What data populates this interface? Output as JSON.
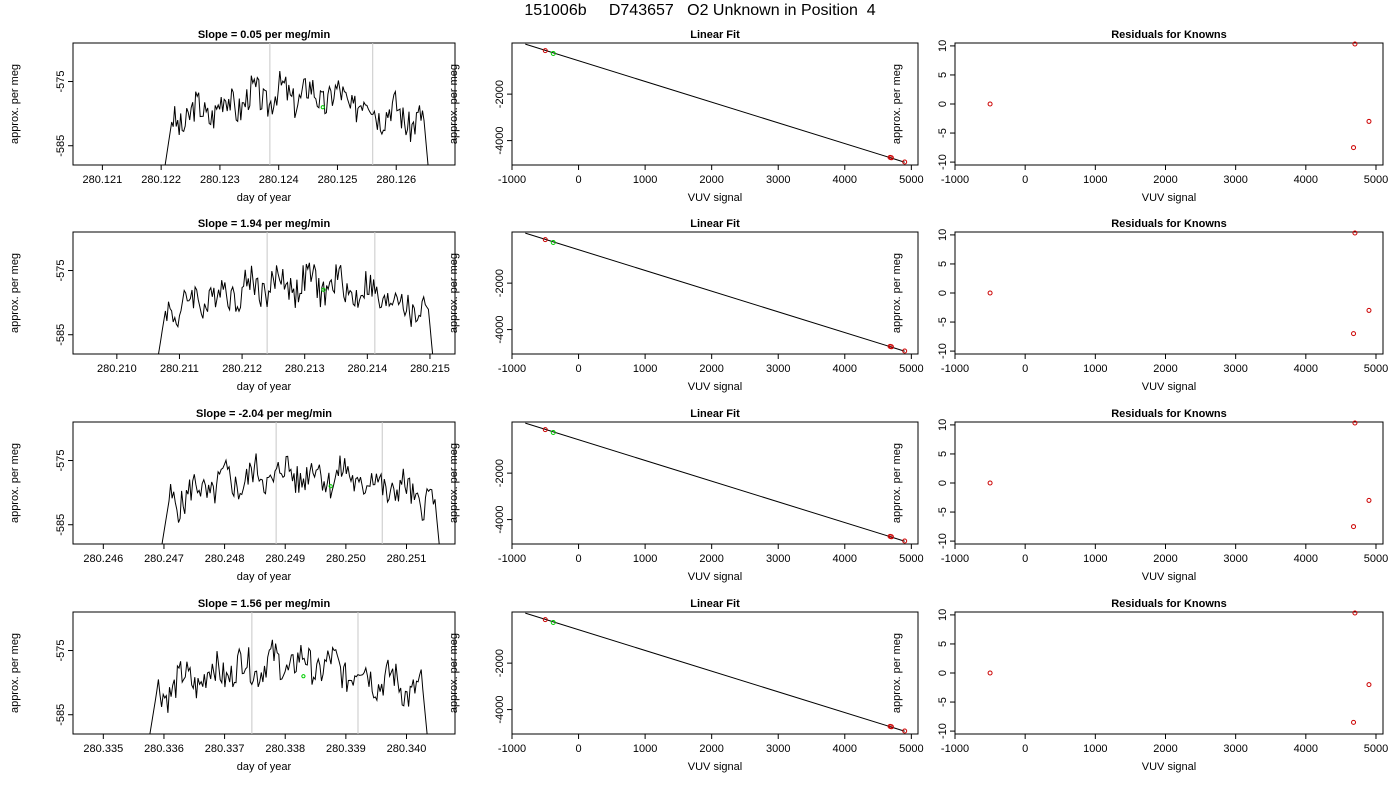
{
  "page_title": "151006b     D743657   O2 Unknown in Position  4",
  "colors": {
    "trace": "#000000",
    "vline": "#c8c8c8",
    "known": "#cc0000",
    "unknown": "#00cc00",
    "axis": "#000000"
  },
  "chart_data": [
    {
      "type": "line",
      "row": 0,
      "title": "Slope =  0.05  per meg/min",
      "xlabel": "day of year",
      "ylabel": "approx. per meg",
      "xlim": [
        280.1205,
        280.127
      ],
      "ylim": [
        -588,
        -569
      ],
      "xticks": [
        "280.121",
        "280.122",
        "280.123",
        "280.124",
        "280.125",
        "280.126"
      ],
      "yticks": [
        "-575",
        "-585"
      ],
      "trace_x": [
        280.122,
        280.1266
      ],
      "vlines": [
        280.12385,
        280.1256
      ],
      "marker": [
        280.12475,
        -579
      ]
    },
    {
      "type": "scatter",
      "row": 0,
      "title": "Linear Fit",
      "xlabel": "VUV signal",
      "ylabel": "approx. per meg",
      "xlim": [
        -1000,
        5100
      ],
      "ylim": [
        -5050,
        200
      ],
      "xticks": [
        "-1000",
        "0",
        "1000",
        "2000",
        "3000",
        "4000",
        "5000"
      ],
      "yticks": [
        "-2000",
        "-4000"
      ],
      "fit_line": [
        [
          -800,
          150
        ],
        [
          4900,
          -4930
        ]
      ],
      "knowns": [
        [
          -500,
          -130
        ],
        [
          4680,
          -4720
        ],
        [
          4700,
          -4740
        ],
        [
          4900,
          -4920
        ]
      ],
      "unknowns": [
        [
          -380,
          -250
        ]
      ]
    },
    {
      "type": "scatter",
      "row": 0,
      "title": "Residuals for Knowns",
      "xlabel": "VUV signal",
      "ylabel": "approx. per meg",
      "xlim": [
        -1000,
        5100
      ],
      "ylim": [
        -10.5,
        10.5
      ],
      "xticks": [
        "-1000",
        "0",
        "1000",
        "2000",
        "3000",
        "4000",
        "5000"
      ],
      "yticks": [
        "10",
        "5",
        "0",
        "-5",
        "-10"
      ],
      "knowns": [
        [
          -500,
          0
        ],
        [
          4700,
          10.5
        ],
        [
          4900,
          -3
        ],
        [
          4680,
          -7.5
        ]
      ]
    },
    {
      "type": "line",
      "row": 1,
      "title": "Slope =  1.94  per meg/min",
      "xlabel": "day of year",
      "ylabel": "approx. per meg",
      "xlim": [
        280.2093,
        280.2154
      ],
      "ylim": [
        -588,
        -569
      ],
      "xticks": [
        "280.210",
        "280.211",
        "280.212",
        "280.213",
        "280.214",
        "280.215"
      ],
      "yticks": [
        "-575",
        "-585"
      ],
      "trace_x": [
        280.2106,
        280.2151
      ],
      "vlines": [
        280.2124,
        280.21412
      ],
      "marker": [
        280.2133,
        -578
      ]
    },
    {
      "type": "scatter",
      "row": 1,
      "title": "Linear Fit",
      "xlabel": "VUV signal",
      "ylabel": "approx. per meg",
      "xlim": [
        -1000,
        5100
      ],
      "ylim": [
        -5050,
        200
      ],
      "xticks": [
        "-1000",
        "0",
        "1000",
        "2000",
        "3000",
        "4000",
        "5000"
      ],
      "yticks": [
        "-2000",
        "-4000"
      ],
      "fit_line": [
        [
          -800,
          150
        ],
        [
          4900,
          -4930
        ]
      ],
      "knowns": [
        [
          -500,
          -130
        ],
        [
          4680,
          -4720
        ],
        [
          4700,
          -4740
        ],
        [
          4900,
          -4920
        ]
      ],
      "unknowns": [
        [
          -380,
          -250
        ]
      ]
    },
    {
      "type": "scatter",
      "row": 1,
      "title": "Residuals for Knowns",
      "xlabel": "VUV signal",
      "ylabel": "approx. per meg",
      "xlim": [
        -1000,
        5100
      ],
      "ylim": [
        -10.5,
        10.5
      ],
      "xticks": [
        "-1000",
        "0",
        "1000",
        "2000",
        "3000",
        "4000",
        "5000"
      ],
      "yticks": [
        "10",
        "5",
        "0",
        "-5",
        "-10"
      ],
      "knowns": [
        [
          -500,
          0
        ],
        [
          4700,
          10.5
        ],
        [
          4900,
          -3
        ],
        [
          4680,
          -7
        ]
      ]
    },
    {
      "type": "line",
      "row": 2,
      "title": "Slope =  -2.04  per meg/min",
      "xlabel": "day of year",
      "ylabel": "approx. per meg",
      "xlim": [
        280.2455,
        280.2518
      ],
      "ylim": [
        -588,
        -569
      ],
      "xticks": [
        "280.246",
        "280.247",
        "280.248",
        "280.249",
        "280.250",
        "280.251"
      ],
      "yticks": [
        "-575",
        "-585"
      ],
      "trace_x": [
        280.2469,
        280.2516
      ],
      "vlines": [
        280.24885,
        280.2506
      ],
      "marker": [
        280.24975,
        -579
      ]
    },
    {
      "type": "scatter",
      "row": 2,
      "title": "Linear Fit",
      "xlabel": "VUV signal",
      "ylabel": "approx. per meg",
      "xlim": [
        -1000,
        5100
      ],
      "ylim": [
        -5050,
        200
      ],
      "xticks": [
        "-1000",
        "0",
        "1000",
        "2000",
        "3000",
        "4000",
        "5000"
      ],
      "yticks": [
        "-2000",
        "-4000"
      ],
      "fit_line": [
        [
          -800,
          150
        ],
        [
          4900,
          -4930
        ]
      ],
      "knowns": [
        [
          -500,
          -130
        ],
        [
          4680,
          -4720
        ],
        [
          4700,
          -4740
        ],
        [
          4900,
          -4920
        ]
      ],
      "unknowns": [
        [
          -380,
          -250
        ]
      ]
    },
    {
      "type": "scatter",
      "row": 2,
      "title": "Residuals for Knowns",
      "xlabel": "VUV signal",
      "ylabel": "approx. per meg",
      "xlim": [
        -1000,
        5100
      ],
      "ylim": [
        -10.5,
        10.5
      ],
      "xticks": [
        "-1000",
        "0",
        "1000",
        "2000",
        "3000",
        "4000",
        "5000"
      ],
      "yticks": [
        "10",
        "5",
        "0",
        "-5",
        "-10"
      ],
      "knowns": [
        [
          -500,
          0
        ],
        [
          4700,
          10.5
        ],
        [
          4900,
          -3
        ],
        [
          4680,
          -7.5
        ]
      ]
    },
    {
      "type": "line",
      "row": 3,
      "title": "Slope =  1.56  per meg/min",
      "xlabel": "day of year",
      "ylabel": "approx. per meg",
      "xlim": [
        280.3345,
        280.3408
      ],
      "ylim": [
        -588,
        -569
      ],
      "xticks": [
        "280.335",
        "280.336",
        "280.337",
        "280.338",
        "280.339",
        "280.340"
      ],
      "yticks": [
        "-575",
        "-585"
      ],
      "trace_x": [
        280.3357,
        280.3404
      ],
      "vlines": [
        280.33745,
        280.3392
      ],
      "marker": [
        280.3383,
        -579
      ]
    },
    {
      "type": "scatter",
      "row": 3,
      "title": "Linear Fit",
      "xlabel": "VUV signal",
      "ylabel": "approx. per meg",
      "xlim": [
        -1000,
        5100
      ],
      "ylim": [
        -5050,
        200
      ],
      "xticks": [
        "-1000",
        "0",
        "1000",
        "2000",
        "3000",
        "4000",
        "5000"
      ],
      "yticks": [
        "-2000",
        "-4000"
      ],
      "fit_line": [
        [
          -800,
          150
        ],
        [
          4900,
          -4930
        ]
      ],
      "knowns": [
        [
          -500,
          -130
        ],
        [
          4680,
          -4720
        ],
        [
          4700,
          -4740
        ],
        [
          4900,
          -4920
        ]
      ],
      "unknowns": [
        [
          -380,
          -250
        ]
      ]
    },
    {
      "type": "scatter",
      "row": 3,
      "title": "Residuals for Knowns",
      "xlabel": "VUV signal",
      "ylabel": "approx. per meg",
      "xlim": [
        -1000,
        5100
      ],
      "ylim": [
        -10.5,
        10.5
      ],
      "xticks": [
        "-1000",
        "0",
        "1000",
        "2000",
        "3000",
        "4000",
        "5000"
      ],
      "yticks": [
        "10",
        "5",
        "0",
        "-5",
        "-10"
      ],
      "knowns": [
        [
          -500,
          0
        ],
        [
          4700,
          10.5
        ],
        [
          4900,
          -2
        ],
        [
          4680,
          -8.5
        ]
      ]
    }
  ]
}
